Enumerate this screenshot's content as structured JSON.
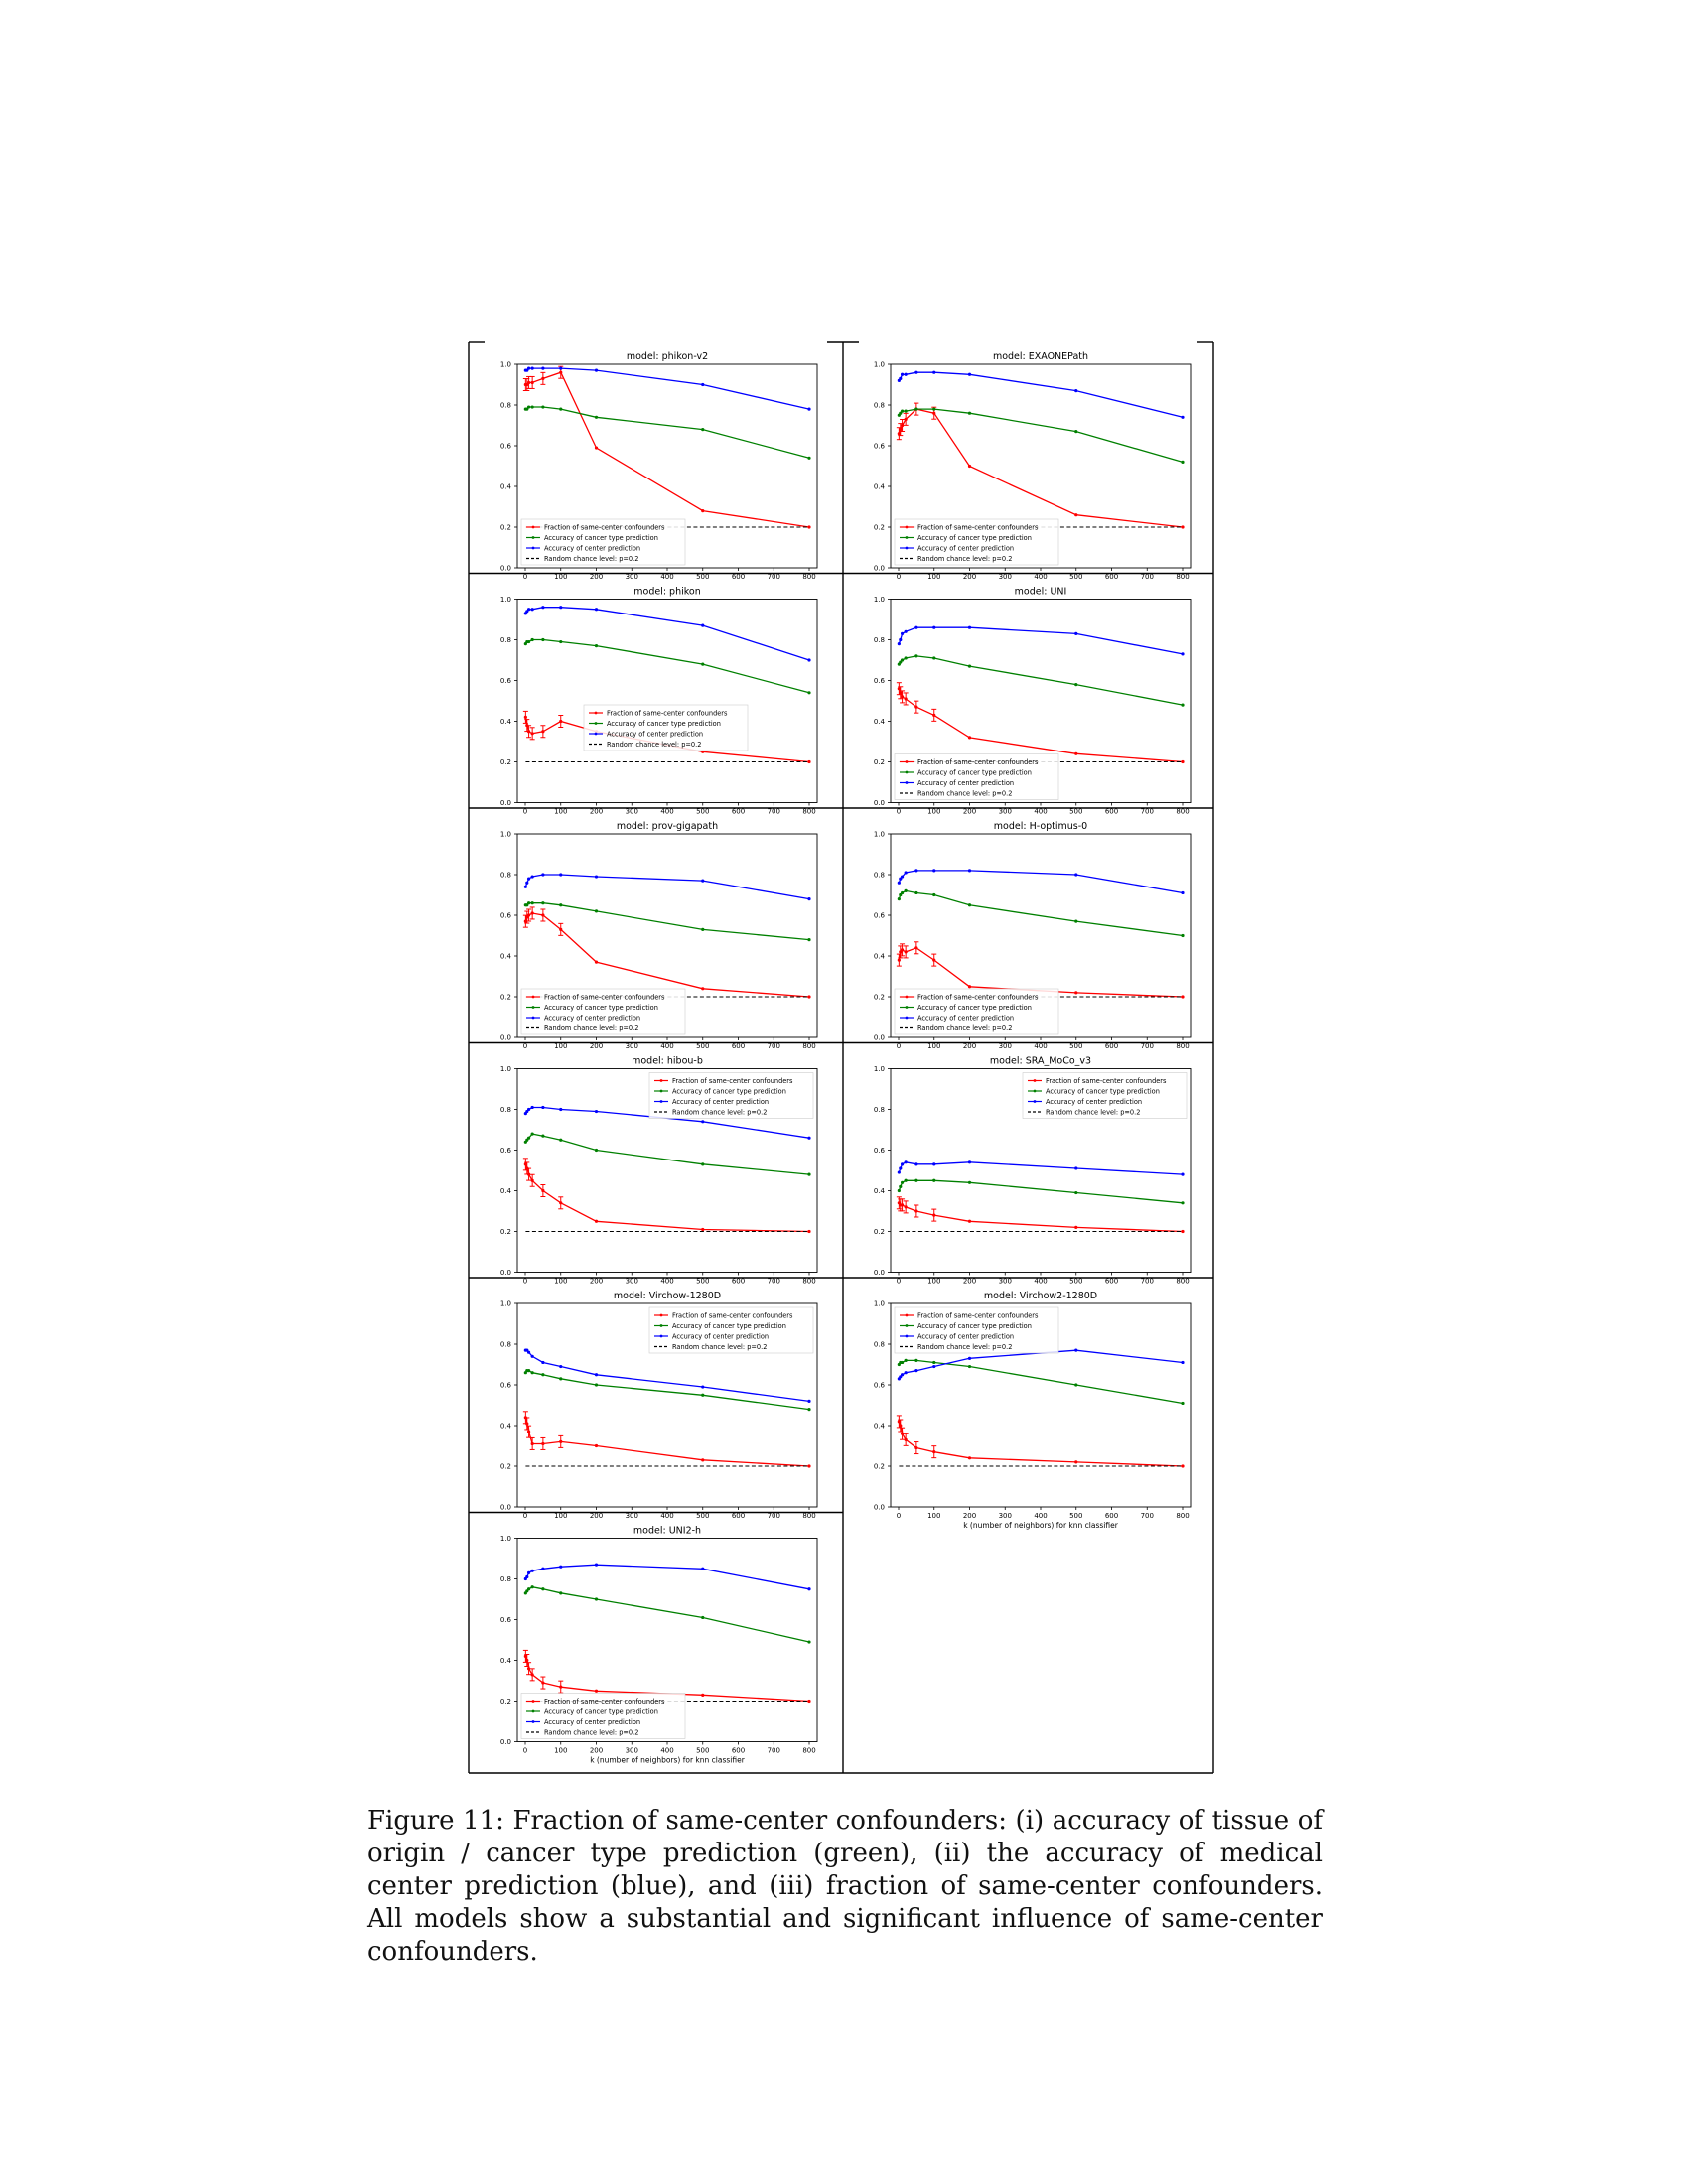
{
  "caption": {
    "label": "Figure 11:",
    "text": "Fraction of same-center confounders: (i) accuracy of tissue of origin / cancer type prediction (green), (ii) the accuracy of medical center prediction (blue), and (iii) fraction of same-center confounders. All models show a substantial and significant influence of same-center confounders."
  },
  "legend_labels": [
    "Fraction of same-center confounders",
    "Accuracy of cancer type prediction",
    "Accuracy of center prediction",
    "Random chance level: p=0.2"
  ],
  "colors": {
    "confounders": "#ff0000",
    "cancer_type": "#008000",
    "center": "#0000ff",
    "chance": "#000000"
  },
  "chart_data": [
    {
      "type": "line",
      "title": "model: phikon-v2",
      "x": [
        1,
        5,
        10,
        20,
        50,
        100,
        200,
        500,
        800
      ],
      "xlabel": "",
      "xlim": [
        0,
        800
      ],
      "ylim": [
        0.0,
        1.0
      ],
      "x_ticks": [
        0,
        100,
        200,
        300,
        400,
        500,
        600,
        700,
        800
      ],
      "y_ticks": [
        0.0,
        0.2,
        0.4,
        0.6,
        0.8,
        1.0
      ],
      "legend_position": "lower left",
      "series": [
        {
          "name": "Fraction of same-center confounders",
          "values": [
            0.9,
            0.9,
            0.91,
            0.91,
            0.93,
            0.96,
            0.59,
            0.28,
            0.2
          ]
        },
        {
          "name": "Accuracy of cancer type prediction",
          "values": [
            0.78,
            0.78,
            0.79,
            0.79,
            0.79,
            0.78,
            0.74,
            0.68,
            0.54
          ]
        },
        {
          "name": "Accuracy of center prediction",
          "values": [
            0.97,
            0.97,
            0.98,
            0.98,
            0.98,
            0.98,
            0.97,
            0.9,
            0.78
          ]
        },
        {
          "name": "Random chance level: p=0.2",
          "values": [
            0.2,
            0.2,
            0.2,
            0.2,
            0.2,
            0.2,
            0.2,
            0.2,
            0.2
          ]
        }
      ]
    },
    {
      "type": "line",
      "title": "model: EXAONEPath",
      "x": [
        1,
        5,
        10,
        20,
        50,
        100,
        200,
        500,
        800
      ],
      "xlabel": "",
      "xlim": [
        0,
        800
      ],
      "ylim": [
        0.0,
        1.0
      ],
      "x_ticks": [
        0,
        100,
        200,
        300,
        400,
        500,
        600,
        700,
        800
      ],
      "y_ticks": [
        0.0,
        0.2,
        0.4,
        0.6,
        0.8,
        1.0
      ],
      "legend_position": "lower left",
      "series": [
        {
          "name": "Fraction of same-center confounders",
          "values": [
            0.66,
            0.68,
            0.7,
            0.73,
            0.78,
            0.76,
            0.5,
            0.26,
            0.2
          ]
        },
        {
          "name": "Accuracy of cancer type prediction",
          "values": [
            0.75,
            0.76,
            0.77,
            0.77,
            0.78,
            0.78,
            0.76,
            0.67,
            0.52
          ]
        },
        {
          "name": "Accuracy of center prediction",
          "values": [
            0.92,
            0.93,
            0.95,
            0.95,
            0.96,
            0.96,
            0.95,
            0.87,
            0.74
          ]
        },
        {
          "name": "Random chance level: p=0.2",
          "values": [
            0.2,
            0.2,
            0.2,
            0.2,
            0.2,
            0.2,
            0.2,
            0.2,
            0.2
          ]
        }
      ]
    },
    {
      "type": "line",
      "title": "model: phikon",
      "x": [
        1,
        5,
        10,
        20,
        50,
        100,
        200,
        500,
        800
      ],
      "xlabel": "",
      "xlim": [
        0,
        800
      ],
      "ylim": [
        0.0,
        1.0
      ],
      "x_ticks": [
        0,
        100,
        200,
        300,
        400,
        500,
        600,
        700,
        800
      ],
      "y_ticks": [
        0.0,
        0.2,
        0.4,
        0.6,
        0.8,
        1.0
      ],
      "legend_position": "center right",
      "series": [
        {
          "name": "Fraction of same-center confounders",
          "values": [
            0.42,
            0.38,
            0.35,
            0.34,
            0.35,
            0.4,
            0.35,
            0.25,
            0.2
          ]
        },
        {
          "name": "Accuracy of cancer type prediction",
          "values": [
            0.78,
            0.79,
            0.79,
            0.8,
            0.8,
            0.79,
            0.77,
            0.68,
            0.54
          ]
        },
        {
          "name": "Accuracy of center prediction",
          "values": [
            0.93,
            0.94,
            0.95,
            0.95,
            0.96,
            0.96,
            0.95,
            0.87,
            0.7
          ]
        },
        {
          "name": "Random chance level: p=0.2",
          "values": [
            0.2,
            0.2,
            0.2,
            0.2,
            0.2,
            0.2,
            0.2,
            0.2,
            0.2
          ]
        }
      ]
    },
    {
      "type": "line",
      "title": "model: UNI",
      "x": [
        1,
        5,
        10,
        20,
        50,
        100,
        200,
        500,
        800
      ],
      "xlabel": "",
      "xlim": [
        0,
        800
      ],
      "ylim": [
        0.0,
        1.0
      ],
      "x_ticks": [
        0,
        100,
        200,
        300,
        400,
        500,
        600,
        700,
        800
      ],
      "y_ticks": [
        0.0,
        0.2,
        0.4,
        0.6,
        0.8,
        1.0
      ],
      "legend_position": "lower left",
      "series": [
        {
          "name": "Fraction of same-center confounders",
          "values": [
            0.56,
            0.54,
            0.52,
            0.51,
            0.47,
            0.43,
            0.32,
            0.24,
            0.2
          ]
        },
        {
          "name": "Accuracy of cancer type prediction",
          "values": [
            0.68,
            0.69,
            0.7,
            0.71,
            0.72,
            0.71,
            0.67,
            0.58,
            0.48
          ]
        },
        {
          "name": "Accuracy of center prediction",
          "values": [
            0.78,
            0.8,
            0.83,
            0.84,
            0.86,
            0.86,
            0.86,
            0.83,
            0.73
          ]
        },
        {
          "name": "Random chance level: p=0.2",
          "values": [
            0.2,
            0.2,
            0.2,
            0.2,
            0.2,
            0.2,
            0.2,
            0.2,
            0.2
          ]
        }
      ]
    },
    {
      "type": "line",
      "title": "model: prov-gigapath",
      "x": [
        1,
        5,
        10,
        20,
        50,
        100,
        200,
        500,
        800
      ],
      "xlabel": "",
      "xlim": [
        0,
        800
      ],
      "ylim": [
        0.0,
        1.0
      ],
      "x_ticks": [
        0,
        100,
        200,
        300,
        400,
        500,
        600,
        700,
        800
      ],
      "y_ticks": [
        0.0,
        0.2,
        0.4,
        0.6,
        0.8,
        1.0
      ],
      "legend_position": "lower left",
      "series": [
        {
          "name": "Fraction of same-center confounders",
          "values": [
            0.57,
            0.59,
            0.6,
            0.61,
            0.6,
            0.53,
            0.37,
            0.24,
            0.2
          ]
        },
        {
          "name": "Accuracy of cancer type prediction",
          "values": [
            0.65,
            0.65,
            0.66,
            0.66,
            0.66,
            0.65,
            0.62,
            0.53,
            0.48
          ]
        },
        {
          "name": "Accuracy of center prediction",
          "values": [
            0.74,
            0.76,
            0.78,
            0.79,
            0.8,
            0.8,
            0.79,
            0.77,
            0.68
          ]
        },
        {
          "name": "Random chance level: p=0.2",
          "values": [
            0.2,
            0.2,
            0.2,
            0.2,
            0.2,
            0.2,
            0.2,
            0.2,
            0.2
          ]
        }
      ]
    },
    {
      "type": "line",
      "title": "model: H-optimus-0",
      "x": [
        1,
        5,
        10,
        20,
        50,
        100,
        200,
        500,
        800
      ],
      "xlabel": "",
      "xlim": [
        0,
        800
      ],
      "ylim": [
        0.0,
        1.0
      ],
      "x_ticks": [
        0,
        100,
        200,
        300,
        400,
        500,
        600,
        700,
        800
      ],
      "y_ticks": [
        0.0,
        0.2,
        0.4,
        0.6,
        0.8,
        1.0
      ],
      "legend_position": "lower left",
      "series": [
        {
          "name": "Fraction of same-center confounders",
          "values": [
            0.38,
            0.42,
            0.43,
            0.42,
            0.44,
            0.38,
            0.25,
            0.22,
            0.2
          ]
        },
        {
          "name": "Accuracy of cancer type prediction",
          "values": [
            0.68,
            0.7,
            0.71,
            0.72,
            0.71,
            0.7,
            0.65,
            0.57,
            0.5
          ]
        },
        {
          "name": "Accuracy of center prediction",
          "values": [
            0.76,
            0.78,
            0.79,
            0.81,
            0.82,
            0.82,
            0.82,
            0.8,
            0.71
          ]
        },
        {
          "name": "Random chance level: p=0.2",
          "values": [
            0.2,
            0.2,
            0.2,
            0.2,
            0.2,
            0.2,
            0.2,
            0.2,
            0.2
          ]
        }
      ]
    },
    {
      "type": "line",
      "title": "model: hibou-b",
      "x": [
        1,
        5,
        10,
        20,
        50,
        100,
        200,
        500,
        800
      ],
      "xlabel": "",
      "xlim": [
        0,
        800
      ],
      "ylim": [
        0.0,
        1.0
      ],
      "x_ticks": [
        0,
        100,
        200,
        300,
        400,
        500,
        600,
        700,
        800
      ],
      "y_ticks": [
        0.0,
        0.2,
        0.4,
        0.6,
        0.8,
        1.0
      ],
      "legend_position": "upper right",
      "series": [
        {
          "name": "Fraction of same-center confounders",
          "values": [
            0.53,
            0.51,
            0.48,
            0.45,
            0.4,
            0.34,
            0.25,
            0.21,
            0.2
          ]
        },
        {
          "name": "Accuracy of cancer type prediction",
          "values": [
            0.64,
            0.65,
            0.66,
            0.68,
            0.67,
            0.65,
            0.6,
            0.53,
            0.48
          ]
        },
        {
          "name": "Accuracy of center prediction",
          "values": [
            0.78,
            0.79,
            0.8,
            0.81,
            0.81,
            0.8,
            0.79,
            0.74,
            0.66
          ]
        },
        {
          "name": "Random chance level: p=0.2",
          "values": [
            0.2,
            0.2,
            0.2,
            0.2,
            0.2,
            0.2,
            0.2,
            0.2,
            0.2
          ]
        }
      ]
    },
    {
      "type": "line",
      "title": "model: SRA_MoCo_v3",
      "x": [
        1,
        5,
        10,
        20,
        50,
        100,
        200,
        500,
        800
      ],
      "xlabel": "",
      "xlim": [
        0,
        800
      ],
      "ylim": [
        0.0,
        1.0
      ],
      "x_ticks": [
        0,
        100,
        200,
        300,
        400,
        500,
        600,
        700,
        800
      ],
      "y_ticks": [
        0.0,
        0.2,
        0.4,
        0.6,
        0.8,
        1.0
      ],
      "legend_position": "upper right",
      "series": [
        {
          "name": "Fraction of same-center confounders",
          "values": [
            0.34,
            0.33,
            0.33,
            0.32,
            0.3,
            0.28,
            0.25,
            0.22,
            0.2
          ]
        },
        {
          "name": "Accuracy of cancer type prediction",
          "values": [
            0.4,
            0.42,
            0.44,
            0.45,
            0.45,
            0.45,
            0.44,
            0.39,
            0.34
          ]
        },
        {
          "name": "Accuracy of center prediction",
          "values": [
            0.49,
            0.51,
            0.53,
            0.54,
            0.53,
            0.53,
            0.54,
            0.51,
            0.48
          ]
        },
        {
          "name": "Random chance level: p=0.2",
          "values": [
            0.2,
            0.2,
            0.2,
            0.2,
            0.2,
            0.2,
            0.2,
            0.2,
            0.2
          ]
        }
      ]
    },
    {
      "type": "line",
      "title": "model: Virchow-1280D",
      "x": [
        1,
        5,
        10,
        20,
        50,
        100,
        200,
        500,
        800
      ],
      "xlabel": "",
      "xlim": [
        0,
        800
      ],
      "ylim": [
        0.0,
        1.0
      ],
      "x_ticks": [
        0,
        100,
        200,
        300,
        400,
        500,
        600,
        700,
        800
      ],
      "y_ticks": [
        0.0,
        0.2,
        0.4,
        0.6,
        0.8,
        1.0
      ],
      "legend_position": "upper right",
      "series": [
        {
          "name": "Fraction of same-center confounders",
          "values": [
            0.44,
            0.41,
            0.37,
            0.31,
            0.31,
            0.32,
            0.3,
            0.23,
            0.2
          ]
        },
        {
          "name": "Accuracy of cancer type prediction",
          "values": [
            0.66,
            0.67,
            0.67,
            0.66,
            0.65,
            0.63,
            0.6,
            0.55,
            0.48
          ]
        },
        {
          "name": "Accuracy of center prediction",
          "values": [
            0.77,
            0.77,
            0.76,
            0.74,
            0.71,
            0.69,
            0.65,
            0.59,
            0.52
          ]
        },
        {
          "name": "Random chance level: p=0.2",
          "values": [
            0.2,
            0.2,
            0.2,
            0.2,
            0.2,
            0.2,
            0.2,
            0.2,
            0.2
          ]
        }
      ]
    },
    {
      "type": "line",
      "title": "model: Virchow2-1280D",
      "x": [
        1,
        5,
        10,
        20,
        50,
        100,
        200,
        500,
        800
      ],
      "xlabel": "k (number of neighbors) for knn classifier",
      "xlim": [
        0,
        800
      ],
      "ylim": [
        0.0,
        1.0
      ],
      "x_ticks": [
        0,
        100,
        200,
        300,
        400,
        500,
        600,
        700,
        800
      ],
      "y_ticks": [
        0.0,
        0.2,
        0.4,
        0.6,
        0.8,
        1.0
      ],
      "legend_position": "upper left",
      "series": [
        {
          "name": "Fraction of same-center confounders",
          "values": [
            0.42,
            0.4,
            0.36,
            0.33,
            0.29,
            0.27,
            0.24,
            0.22,
            0.2
          ]
        },
        {
          "name": "Accuracy of cancer type prediction",
          "values": [
            0.7,
            0.71,
            0.71,
            0.72,
            0.72,
            0.71,
            0.69,
            0.6,
            0.51
          ]
        },
        {
          "name": "Accuracy of center prediction",
          "values": [
            0.63,
            0.64,
            0.65,
            0.66,
            0.67,
            0.69,
            0.73,
            0.77,
            0.71
          ]
        },
        {
          "name": "Random chance level: p=0.2",
          "values": [
            0.2,
            0.2,
            0.2,
            0.2,
            0.2,
            0.2,
            0.2,
            0.2,
            0.2
          ]
        }
      ]
    },
    {
      "type": "line",
      "title": "model: UNI2-h",
      "x": [
        1,
        5,
        10,
        20,
        50,
        100,
        200,
        500,
        800
      ],
      "xlabel": "k (number of neighbors) for knn classifier",
      "xlim": [
        0,
        800
      ],
      "ylim": [
        0.0,
        1.0
      ],
      "x_ticks": [
        0,
        100,
        200,
        300,
        400,
        500,
        600,
        700,
        800
      ],
      "y_ticks": [
        0.0,
        0.2,
        0.4,
        0.6,
        0.8,
        1.0
      ],
      "legend_position": "lower left",
      "series": [
        {
          "name": "Fraction of same-center confounders",
          "values": [
            0.42,
            0.4,
            0.36,
            0.33,
            0.29,
            0.27,
            0.25,
            0.23,
            0.2
          ]
        },
        {
          "name": "Accuracy of cancer type prediction",
          "values": [
            0.73,
            0.74,
            0.75,
            0.76,
            0.75,
            0.73,
            0.7,
            0.61,
            0.49
          ]
        },
        {
          "name": "Accuracy of center prediction",
          "values": [
            0.8,
            0.81,
            0.83,
            0.84,
            0.85,
            0.86,
            0.87,
            0.85,
            0.75
          ]
        },
        {
          "name": "Random chance level: p=0.2",
          "values": [
            0.2,
            0.2,
            0.2,
            0.2,
            0.2,
            0.2,
            0.2,
            0.2,
            0.2
          ]
        }
      ]
    }
  ]
}
